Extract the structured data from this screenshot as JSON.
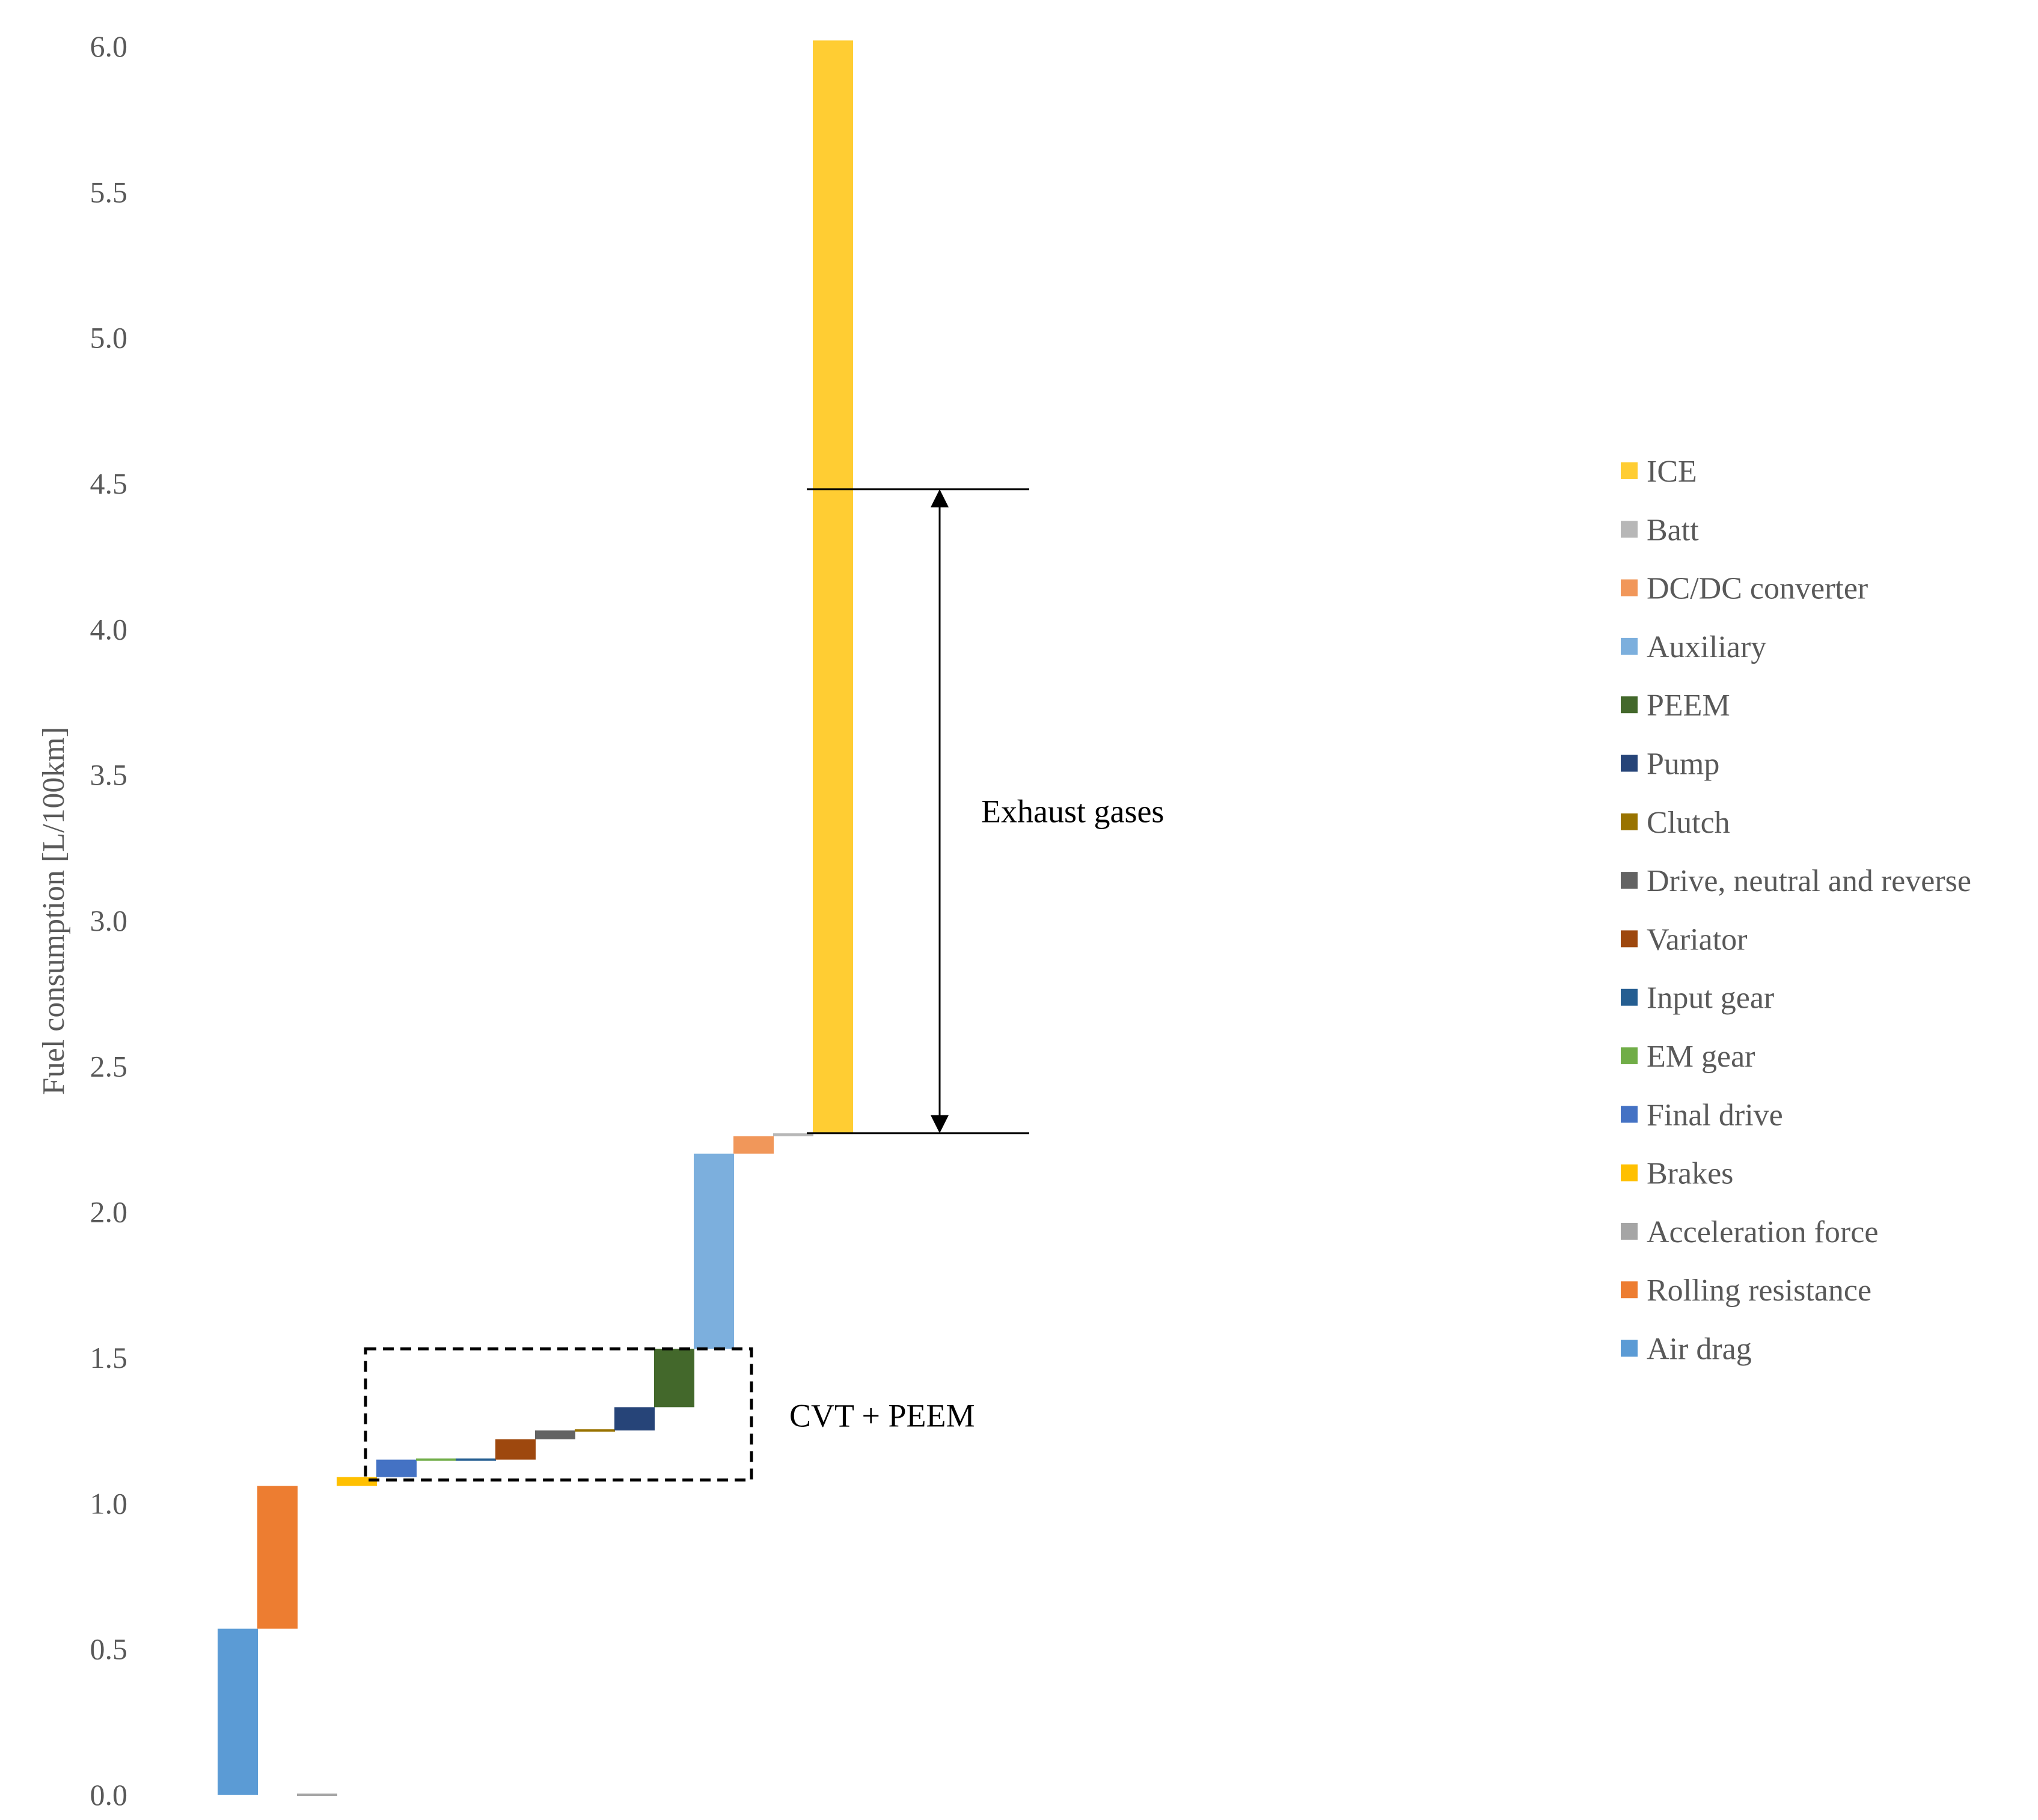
{
  "chart_data": {
    "type": "waterfall",
    "title": "",
    "xlabel": "",
    "ylabel": "Fuel consumption [L/100km]",
    "ylim": [
      0,
      6
    ],
    "y_ticks": [
      "0.0",
      "0.5",
      "1.0",
      "1.5",
      "2.0",
      "2.5",
      "3.0",
      "3.5",
      "4.0",
      "4.5",
      "5.0",
      "5.5",
      "6.0"
    ],
    "grid": false,
    "legend_position": "right",
    "categories": [
      "Air drag",
      "Rolling resistance",
      "Acceleration force",
      "Brakes",
      "Final drive",
      "EM gear",
      "Input gear",
      "Variator",
      "Drive, neutral and reverse",
      "Clutch",
      "Pump",
      "PEEM",
      "Auxiliary",
      "DC/DC converter",
      "Batt",
      "ICE"
    ],
    "series": [
      {
        "name": "Air drag",
        "start": 0.0,
        "end": 0.57,
        "color": "#5B9BD5"
      },
      {
        "name": "Rolling resistance",
        "start": 0.57,
        "end": 1.06,
        "color": "#ED7D31"
      },
      {
        "name": "Acceleration force",
        "start": 0.0,
        "end": 0.0,
        "color": "#A5A5A5"
      },
      {
        "name": "Brakes",
        "start": 1.06,
        "end": 1.09,
        "color": "#FFC000"
      },
      {
        "name": "Final drive",
        "start": 1.09,
        "end": 1.15,
        "color": "#4472C4"
      },
      {
        "name": "EM gear",
        "start": 1.15,
        "end": 1.15,
        "color": "#70AD47"
      },
      {
        "name": "Input gear",
        "start": 1.15,
        "end": 1.15,
        "color": "#255E91"
      },
      {
        "name": "Variator",
        "start": 1.15,
        "end": 1.22,
        "color": "#9E480E"
      },
      {
        "name": "Drive, neutral and reverse",
        "start": 1.22,
        "end": 1.25,
        "color": "#636363"
      },
      {
        "name": "Clutch",
        "start": 1.25,
        "end": 1.25,
        "color": "#997300"
      },
      {
        "name": "Pump",
        "start": 1.25,
        "end": 1.33,
        "color": "#264478"
      },
      {
        "name": "PEEM",
        "start": 1.33,
        "end": 1.53,
        "color": "#43682B"
      },
      {
        "name": "Auxiliary",
        "start": 1.53,
        "end": 2.2,
        "color": "#7CAFDD"
      },
      {
        "name": "DC/DC converter",
        "start": 2.2,
        "end": 2.26,
        "color": "#F1975A"
      },
      {
        "name": "Batt",
        "start": 2.26,
        "end": 2.27,
        "color": "#B7B7B7"
      },
      {
        "name": "ICE",
        "start": 2.27,
        "end": 6.02,
        "color": "#FFCD33"
      }
    ],
    "legend": [
      "ICE",
      "Batt",
      "DC/DC converter",
      "Auxiliary",
      "PEEM",
      "Pump",
      "Clutch",
      "Drive, neutral and reverse",
      "Variator",
      "Input gear",
      "EM gear",
      "Final drive",
      "Brakes",
      "Acceleration force",
      "Rolling resistance",
      "Air drag"
    ],
    "annotations": {
      "exhaust": {
        "label": "Exhaust gases",
        "from": 2.27,
        "to": 4.48
      },
      "cvt_box": {
        "label": "CVT + PEEM",
        "y_from": 1.08,
        "y_to": 1.53,
        "first_category": "Final drive",
        "last_category": "PEEM"
      }
    }
  }
}
